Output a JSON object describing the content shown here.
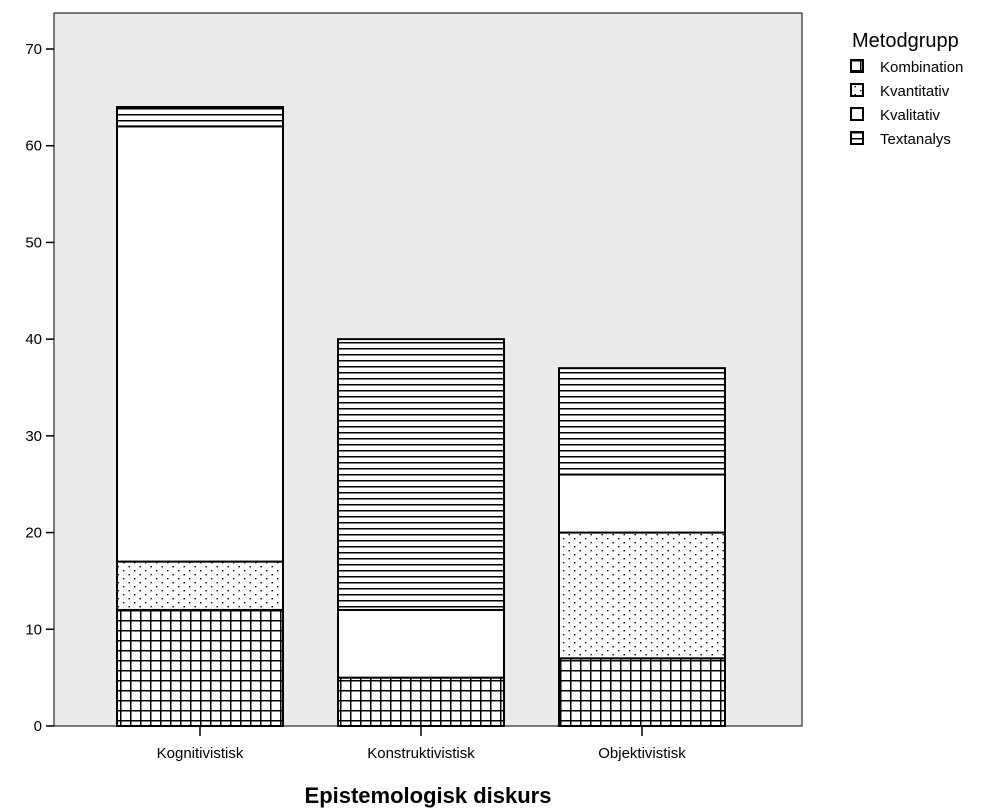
{
  "chart_data": {
    "type": "bar",
    "stacked": true,
    "categories": [
      "Kognitivistisk",
      "Konstruktivistisk",
      "Objektivistisk"
    ],
    "series": [
      {
        "name": "Kombination",
        "pattern": "grid",
        "values": [
          12,
          5,
          7
        ]
      },
      {
        "name": "Kvantitativ",
        "pattern": "dots",
        "values": [
          5,
          0,
          13
        ]
      },
      {
        "name": "Kvalitativ",
        "pattern": "blank",
        "values": [
          45,
          7,
          6
        ]
      },
      {
        "name": "Textanalys",
        "pattern": "hlines",
        "values": [
          2,
          28,
          11
        ]
      }
    ],
    "xlabel": "Epistemologisk diskurs",
    "ylabel": "",
    "ylim": [
      0,
      70
    ],
    "yticks": [
      0,
      10,
      20,
      30,
      40,
      50,
      60,
      70
    ],
    "legend_title": "Metodgrupp",
    "legend_placement": "top-right, outside plot",
    "plot_background": "#ebebeb",
    "bar_fill": "#ffffff",
    "stroke_color": "#000000",
    "grid": false
  }
}
